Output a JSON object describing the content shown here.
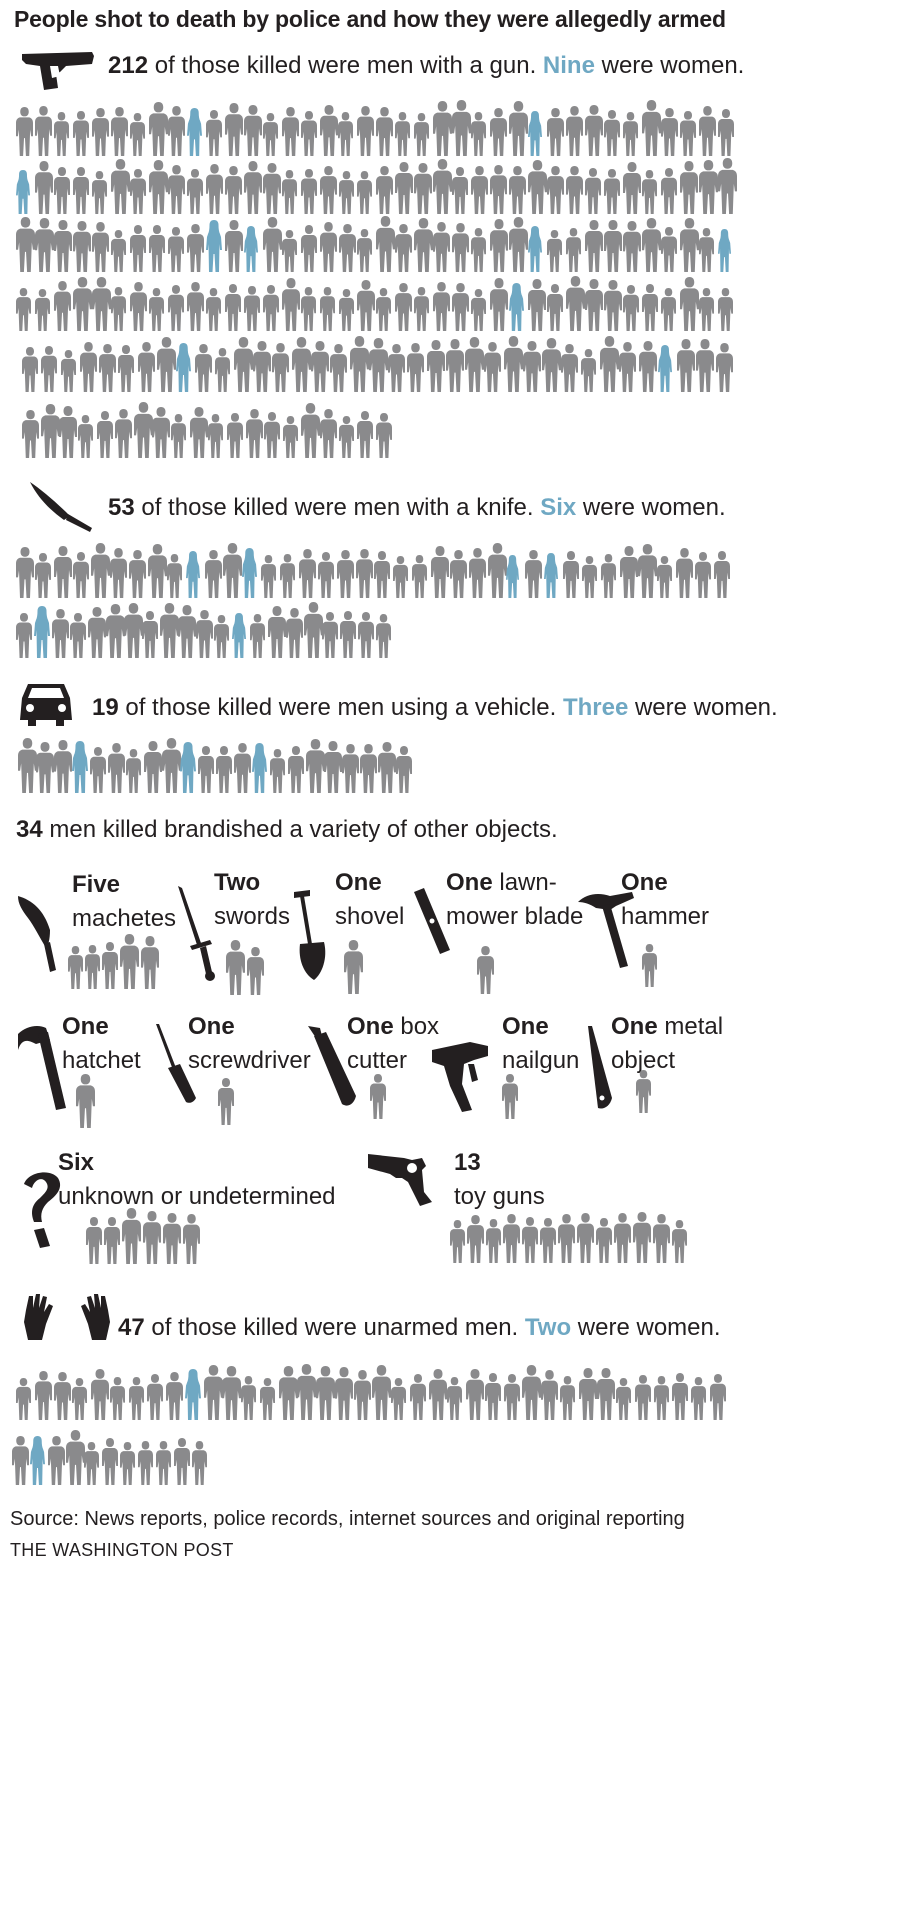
{
  "title": "People shot to death by police and how they were allegedly armed",
  "colors": {
    "man": "#8a8a8c",
    "woman": "#6fa8c3",
    "icon": "#231f20"
  },
  "sections": {
    "gun": {
      "icon": "pistol-icon",
      "count": "212",
      "text": " of those killed were men with a gun. ",
      "women_word": "Nine",
      "tail": " were women."
    },
    "knife": {
      "icon": "knife-icon",
      "count": "53",
      "text": " of those killed were men with a knife. ",
      "women_word": "Six",
      "tail": " were women."
    },
    "vehicle": {
      "icon": "car-icon",
      "count": "19",
      "text": " of those killed were men using a vehicle. ",
      "women_word": "Three",
      "tail": " were women."
    },
    "other": {
      "count": "34",
      "text": " men killed brandished a variety of other objects."
    },
    "unarmed": {
      "icon": "hands-icon",
      "count": "47",
      "text": " of those killed were unarmed men. ",
      "women_word": "Two",
      "tail": " were women."
    }
  },
  "weapons": [
    {
      "n": "Five",
      "l1": "",
      "l2": "machetes",
      "icon": "machete-icon"
    },
    {
      "n": "Two",
      "l1": "",
      "l2": "swords",
      "icon": "sword-icon"
    },
    {
      "n": "One",
      "l1": "",
      "l2": "shovel",
      "icon": "shovel-icon"
    },
    {
      "n": "One",
      "l1": " lawn-",
      "l2": "mower blade",
      "icon": "mower-blade-icon"
    },
    {
      "n": "One",
      "l1": "",
      "l2": "hammer",
      "icon": "hammer-icon"
    },
    {
      "n": "One",
      "l1": "",
      "l2": "hatchet",
      "icon": "hatchet-icon"
    },
    {
      "n": "One",
      "l1": "",
      "l2": "screwdriver",
      "icon": "screwdriver-icon"
    },
    {
      "n": "One",
      "l1": " box",
      "l2": "cutter",
      "icon": "box-cutter-icon"
    },
    {
      "n": "One",
      "l1": "",
      "l2": "nailgun",
      "icon": "nailgun-icon"
    },
    {
      "n": "One",
      "l1": " metal",
      "l2": "object",
      "icon": "metal-object-icon"
    },
    {
      "n": "Six",
      "l1": "",
      "l2": "unknown or undetermined",
      "icon": "question-mark-icon"
    },
    {
      "n": "13",
      "l1": "",
      "l2": "toy guns",
      "icon": "revolver-icon"
    }
  ],
  "footer": {
    "source": "Source: News reports, police records, internet sources and original reporting",
    "credit": "THE WASHINGTON POST"
  },
  "chart_data": {
    "type": "pictograph",
    "unit": "one figure = one person",
    "categories": [
      "Gun",
      "Knife",
      "Vehicle",
      "Machetes",
      "Swords",
      "Shovel",
      "Lawn-mower blade",
      "Hammer",
      "Hatchet",
      "Screwdriver",
      "Box cutter",
      "Nailgun",
      "Metal object",
      "Unknown or undetermined",
      "Toy guns",
      "Unarmed"
    ],
    "series": [
      {
        "name": "men",
        "values": [
          212,
          53,
          19,
          5,
          2,
          1,
          1,
          1,
          1,
          1,
          1,
          1,
          1,
          6,
          13,
          47
        ]
      },
      {
        "name": "women",
        "values": [
          9,
          6,
          3,
          0,
          0,
          0,
          0,
          0,
          0,
          0,
          0,
          0,
          0,
          0,
          0,
          2
        ]
      }
    ]
  }
}
